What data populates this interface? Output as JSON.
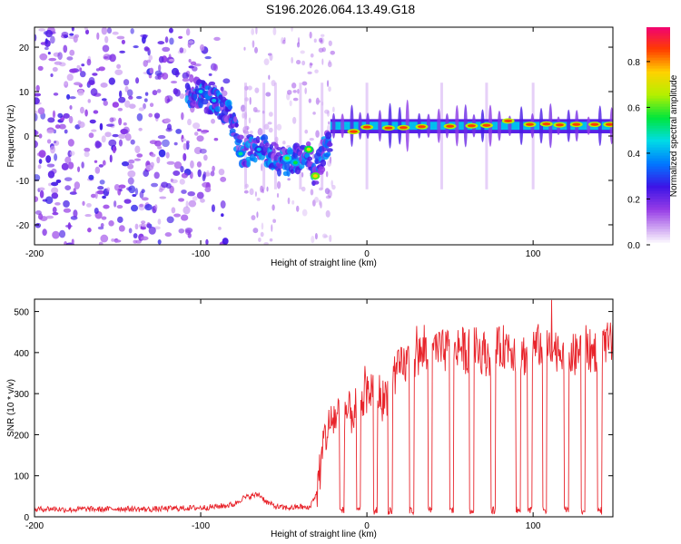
{
  "title": "S196.2026.064.13.49.G18",
  "chart_data": [
    {
      "type": "heatmap",
      "name": "spectrogram",
      "xlabel": "Height of straight line (km)",
      "ylabel": "Frequency (Hz)",
      "xlim": [
        -200,
        148
      ],
      "ylim": [
        -24.5,
        24.5
      ],
      "x_ticks": [
        -200,
        -100,
        0,
        100
      ],
      "y_ticks": [
        -20,
        -10,
        0,
        10,
        20
      ],
      "colorbar": {
        "label": "Normalized spectral amplitude",
        "range": [
          0,
          0.95
        ],
        "ticks": [
          0.0,
          0.2,
          0.4,
          0.6,
          0.8
        ]
      },
      "ridge": {
        "description_points": [
          {
            "x": -105,
            "y": 10
          },
          {
            "x": -92,
            "y": 8
          },
          {
            "x": -82,
            "y": 4
          },
          {
            "x": -75,
            "y": -4
          },
          {
            "x": -65,
            "y": -2
          },
          {
            "x": -55,
            "y": -5
          },
          {
            "x": -45,
            "y": -6
          },
          {
            "x": -35,
            "y": -3
          },
          {
            "x": -32,
            "y": -9
          },
          {
            "x": -22,
            "y": 0
          },
          {
            "x": 0,
            "y": 2
          },
          {
            "x": 50,
            "y": 2.5
          },
          {
            "x": 100,
            "y": 2.6
          },
          {
            "x": 148,
            "y": 2.6
          }
        ]
      }
    },
    {
      "type": "line",
      "name": "snr",
      "xlabel": "Height of straight line (km)",
      "ylabel": "SNR (10 * v/v)",
      "xlim": [
        -200,
        148
      ],
      "ylim": [
        0,
        530
      ],
      "x_ticks": [
        -200,
        -100,
        0,
        100
      ],
      "y_ticks": [
        0,
        100,
        200,
        300,
        400,
        500
      ],
      "color": "#e8242b",
      "series": {
        "x": [
          -200,
          -190,
          -180,
          -170,
          -160,
          -150,
          -140,
          -130,
          -120,
          -110,
          -100,
          -90,
          -80,
          -75,
          -70,
          -65,
          -60,
          -55,
          -50,
          -45,
          -40,
          -35,
          -30,
          -27,
          -25,
          -20,
          -15,
          -10,
          -5,
          0,
          5,
          10,
          15,
          20,
          25,
          30,
          35,
          40,
          45,
          50,
          55,
          60,
          65,
          70,
          75,
          80,
          85,
          90,
          95,
          100,
          105,
          110,
          115,
          120,
          125,
          130,
          135,
          140,
          145,
          148
        ],
        "y": [
          18,
          20,
          17,
          19,
          18,
          20,
          19,
          18,
          20,
          21,
          22,
          25,
          30,
          45,
          50,
          55,
          35,
          25,
          22,
          22,
          25,
          20,
          60,
          150,
          200,
          240,
          260,
          250,
          270,
          300,
          320,
          280,
          330,
          360,
          380,
          390,
          400,
          410,
          400,
          410,
          420,
          400,
          410,
          400,
          390,
          410,
          420,
          400,
          395,
          410,
          420,
          400,
          410,
          405,
          390,
          420,
          400,
          410,
          420,
          420
        ]
      },
      "dropouts_x": [
        -15,
        -5,
        5,
        14,
        27,
        38,
        51,
        63,
        76,
        91,
        98,
        107,
        120,
        130,
        140
      ]
    }
  ]
}
